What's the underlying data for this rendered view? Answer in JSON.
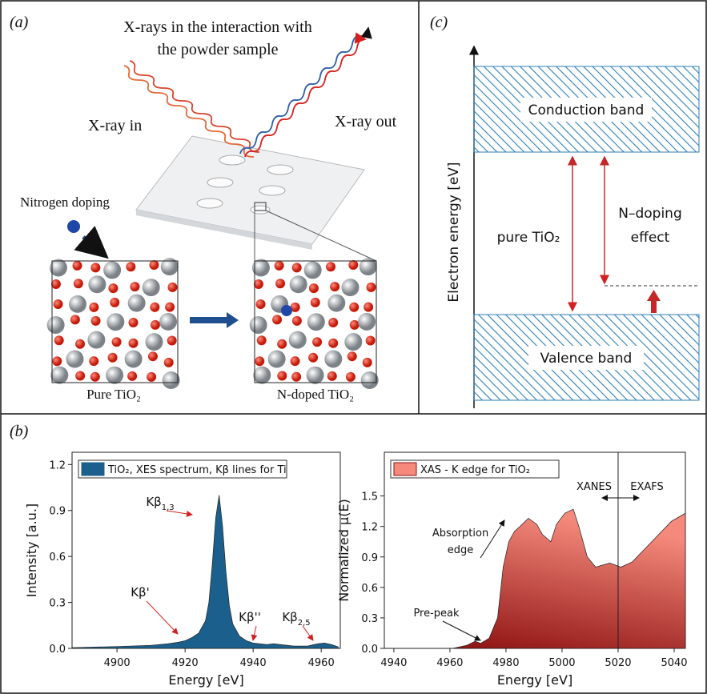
{
  "panel_a": {
    "label": "(a)",
    "title_lines": [
      "X-rays in the interaction with",
      "the powder sample"
    ],
    "xray_in": "X-ray in",
    "xray_out": "X-ray out",
    "doping": "Nitrogen doping",
    "pure": "Pure TiO₂",
    "doped": "N-doped TiO₂"
  },
  "panel_c": {
    "label": "(c)",
    "axis_label": "Electron energy [eV]",
    "conduction": "Conduction band",
    "valence": "Valence band",
    "pure": "pure TiO₂",
    "effect_lines": [
      "N–doping",
      "effect"
    ]
  },
  "panel_b_label": "(b)",
  "chart_data": [
    {
      "type": "area",
      "xlabel": "Energy [eV]",
      "ylabel": "Intensity [a.u.]",
      "x": [
        4887,
        4900,
        4910,
        4915,
        4918,
        4920,
        4922,
        4924,
        4926,
        4927,
        4928,
        4929,
        4930,
        4931,
        4932,
        4933,
        4934,
        4936,
        4938,
        4940,
        4944,
        4946,
        4948,
        4952,
        4956,
        4959,
        4961,
        4963,
        4965
      ],
      "series": [
        {
          "name": "TiO₂, XES spectrum, Kβ lines for Ti",
          "color": "#1b5f8c",
          "values": [
            0.005,
            0.012,
            0.02,
            0.03,
            0.04,
            0.05,
            0.07,
            0.1,
            0.18,
            0.3,
            0.55,
            0.85,
            1.0,
            0.8,
            0.5,
            0.28,
            0.16,
            0.08,
            0.05,
            0.035,
            0.025,
            0.03,
            0.025,
            0.015,
            0.015,
            0.03,
            0.035,
            0.025,
            0.01
          ]
        }
      ],
      "xlim": [
        4886.8,
        4965.6
      ],
      "ylim": [
        0,
        1.28
      ],
      "xticks": [
        4900,
        4920,
        4940,
        4960
      ],
      "yticks": [
        {
          "value": 0,
          "label": "0.0"
        },
        {
          "value": 0.3,
          "label": "0.3"
        },
        {
          "value": 0.6,
          "label": "0.6"
        },
        {
          "value": 0.9,
          "label": "0.9"
        },
        {
          "value": 1.2,
          "label": "1.2"
        }
      ],
      "annotations": [
        {
          "label": "Kβ",
          "subscript": "1,3"
        },
        {
          "label": "Kβ'"
        },
        {
          "label": "Kβ''"
        },
        {
          "label": "Kβ",
          "subscript": "2,5"
        }
      ]
    },
    {
      "type": "area",
      "xlabel": "Energy [eV]",
      "ylabel": "Normalized μ(E)",
      "x": [
        4961,
        4966,
        4969,
        4971,
        4974,
        4977,
        4979,
        4981,
        4983,
        4985,
        4988,
        4991,
        4993,
        4996,
        4998,
        5001,
        5004,
        5006,
        5009,
        5012,
        5017,
        5021,
        5025,
        5032,
        5039,
        5044
      ],
      "series": [
        {
          "name": "XAS - K edge for TiO₂",
          "color": "#8e1212",
          "gradient_top": "#f58a7c",
          "values": [
            0,
            0.03,
            0.07,
            0.05,
            0.1,
            0.3,
            0.8,
            1.05,
            1.15,
            1.2,
            1.28,
            1.22,
            1.12,
            1.05,
            1.22,
            1.33,
            1.37,
            1.2,
            0.9,
            0.8,
            0.84,
            0.8,
            0.85,
            1.05,
            1.25,
            1.33
          ]
        }
      ],
      "xlim": [
        4936.6,
        5044
      ],
      "ylim": [
        0,
        1.93
      ],
      "xticks": [
        4940,
        4960,
        4980,
        5000,
        5020,
        5040
      ],
      "yticks": [
        {
          "value": 0,
          "label": "0.0"
        },
        {
          "value": 0.3,
          "label": "0.3"
        },
        {
          "value": 0.6,
          "label": "0.6"
        },
        {
          "value": 0.9,
          "label": "0.9"
        },
        {
          "value": 1.2,
          "label": "1.2"
        },
        {
          "value": 1.5,
          "label": "1.5"
        }
      ],
      "divider_x": 5020,
      "annotations": [
        {
          "label": "XANES"
        },
        {
          "label": "EXAFS"
        },
        {
          "label": "Absorption"
        },
        {
          "label": "edge"
        },
        {
          "label": "Pre-peak"
        }
      ]
    }
  ]
}
